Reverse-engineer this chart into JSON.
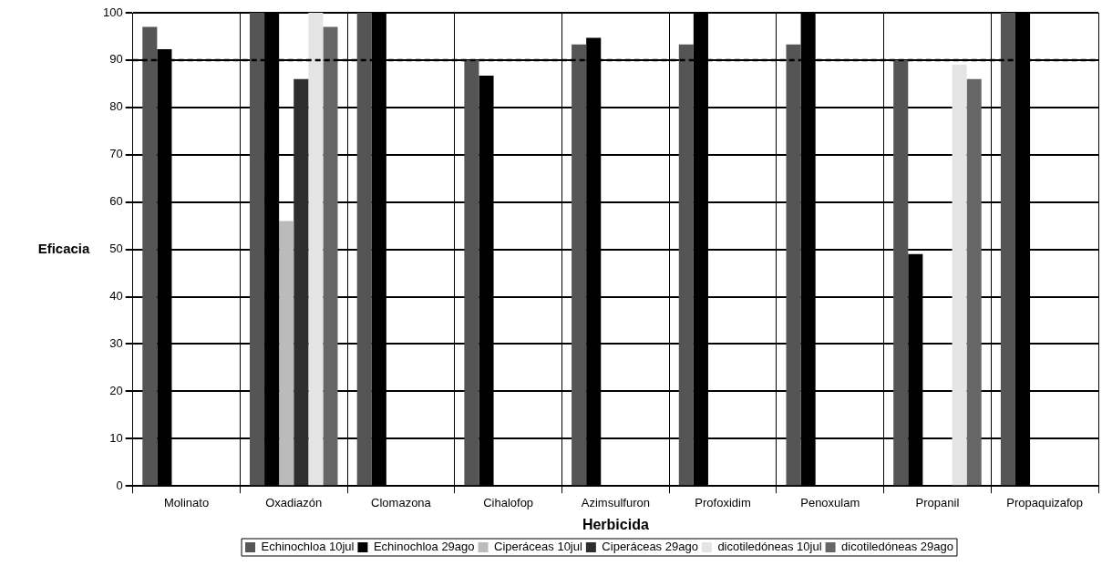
{
  "chart_data": {
    "type": "bar",
    "xlabel": "Herbicida",
    "ylabel": "Eficacia",
    "categories": [
      "Molinato",
      "Oxadiazón",
      "Clomazona",
      "Cihalofop",
      "Azimsulfuron",
      "Profoxidim",
      "Penoxulam",
      "Propanil",
      "Propaquizafop"
    ],
    "series": [
      {
        "name": "Echinochloa 10jul",
        "color": "#555555",
        "values": [
          97,
          100,
          100,
          90,
          93.3,
          93.3,
          93.3,
          90,
          100
        ]
      },
      {
        "name": "Echinochloa 29ago",
        "color": "#000000",
        "values": [
          92.3,
          100,
          100,
          86.7,
          94.7,
          100,
          100,
          49,
          100
        ]
      },
      {
        "name": "Ciperáceas 10jul",
        "color": "#bbbbbb",
        "values": [
          null,
          56,
          null,
          null,
          null,
          null,
          null,
          null,
          null
        ]
      },
      {
        "name": "Ciperáceas 29ago",
        "color": "#2e2e2e",
        "values": [
          null,
          86,
          null,
          null,
          null,
          null,
          null,
          null,
          null
        ]
      },
      {
        "name": "dicotiledóneas 10jul",
        "color": "#e4e4e4",
        "values": [
          null,
          100,
          null,
          null,
          null,
          null,
          null,
          89,
          null
        ]
      },
      {
        "name": "dicotiledóneas 29ago",
        "color": "#666666",
        "values": [
          null,
          97,
          null,
          null,
          null,
          null,
          null,
          86,
          null
        ]
      }
    ],
    "ylim": [
      0,
      100
    ],
    "yticks": [
      0,
      10,
      20,
      30,
      40,
      50,
      60,
      70,
      80,
      90,
      100
    ],
    "ref_lines": [
      {
        "axis": "y",
        "value": 90,
        "color": "#000000",
        "line_style": "dashed"
      }
    ],
    "grid": true,
    "legend": "bottom"
  }
}
